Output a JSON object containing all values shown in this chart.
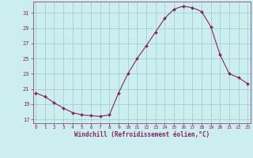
{
  "x": [
    0,
    1,
    2,
    3,
    4,
    5,
    6,
    7,
    8,
    9,
    10,
    11,
    12,
    13,
    14,
    15,
    16,
    17,
    18,
    19,
    20,
    21,
    22,
    23
  ],
  "y": [
    20.5,
    20.0,
    19.2,
    18.5,
    17.9,
    17.6,
    17.5,
    17.4,
    17.6,
    20.5,
    23.0,
    25.0,
    26.7,
    28.5,
    30.3,
    31.5,
    31.9,
    31.7,
    31.2,
    29.2,
    25.5,
    23.0,
    22.5,
    21.7
  ],
  "line_color": "#882266",
  "marker_color": "#882266",
  "bg_color": "#cceeee",
  "grid_color": "#99cccc",
  "xlabel": "Windchill (Refroidissement éolien,°C)",
  "xlabel_color": "#882266",
  "tick_color": "#882266",
  "ylim": [
    16.5,
    32.5
  ],
  "yticks": [
    17,
    19,
    21,
    23,
    25,
    27,
    29,
    31
  ],
  "xticks": [
    0,
    1,
    2,
    3,
    4,
    5,
    6,
    7,
    8,
    9,
    10,
    11,
    12,
    13,
    14,
    15,
    16,
    17,
    18,
    19,
    20,
    21,
    22,
    23
  ],
  "xlim": [
    -0.3,
    23.3
  ],
  "figsize": [
    3.2,
    2.0
  ],
  "dpi": 100
}
